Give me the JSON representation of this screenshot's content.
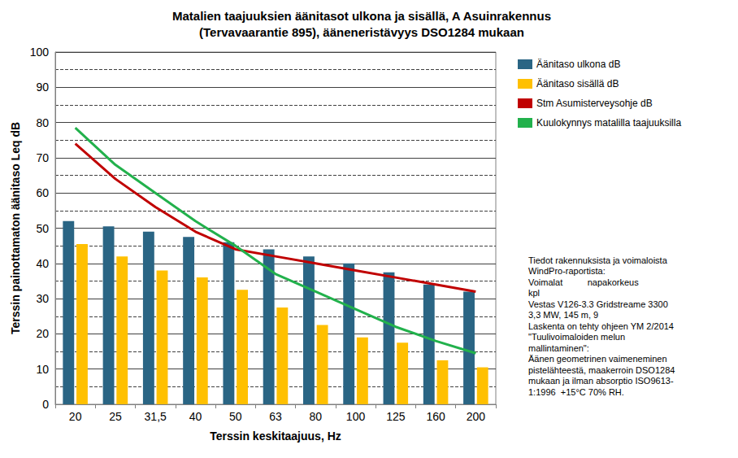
{
  "chart_data": {
    "type": "bar",
    "title": "Matalien taajuuksien äänitasot ulkona ja sisällä, A Asuinrakennus\n(Tervavaarantie 895), ääneneristävyys DSO1284 mukaan",
    "x_label": "Terssin keskitaajuus, Hz",
    "y_label": "Terssin painottamaton äänitaso Leq dB",
    "categories": [
      "20",
      "25",
      "31,5",
      "40",
      "50",
      "63",
      "80",
      "100",
      "125",
      "160",
      "200"
    ],
    "series": [
      {
        "name": "Äänitaso ulkona dB",
        "type": "bar",
        "color": "#2a6584",
        "values": [
          52,
          50.5,
          49,
          47.5,
          46,
          44,
          42,
          40,
          37.5,
          34,
          32
        ]
      },
      {
        "name": "Äänitaso sisällä dB",
        "type": "bar",
        "color": "#ffc000",
        "values": [
          45.5,
          42,
          38,
          36,
          32.5,
          27.5,
          22.5,
          19,
          17.5,
          12.5,
          10.5
        ]
      },
      {
        "name": "Stm Asumisterveysohje dB",
        "type": "line",
        "color": "#c00000",
        "marker": "none",
        "line_style": "solid",
        "values": [
          74,
          64,
          56,
          49,
          44,
          42,
          40,
          38,
          36,
          34,
          32
        ]
      },
      {
        "name": "Kuulokynnys matalilla taajuuksilla",
        "type": "line",
        "color": "#22b14c",
        "marker": "none",
        "line_style": "solid",
        "values": [
          78.5,
          68,
          60,
          52,
          45,
          37,
          32,
          27,
          22,
          18,
          14.5
        ]
      }
    ],
    "ylim": [
      0,
      100
    ],
    "yticks": [
      0,
      10,
      20,
      30,
      40,
      50,
      60,
      70,
      80,
      90,
      100
    ],
    "grid": true,
    "legend": "right",
    "annotations": [
      "Tiedot rakennuksista ja voimaloista",
      "WindPro-raportista:",
      "Voimalat          napakorkeus",
      "kpl",
      "Vestas V126-3.3 Gridstreame 3300",
      "3,3 MW, 145 m, 9",
      "Laskenta on tehty ohjeen YM 2/2014",
      "\"Tuulivoimaloiden melun",
      "mallintaminen\":",
      "Äänen geometrinen vaimeneminen",
      "pistelähteestä, maakerroin DSO1284",
      "mukaan ja ilman absorptio ISO9613-",
      "1:1996  +15°C 70% RH."
    ]
  }
}
